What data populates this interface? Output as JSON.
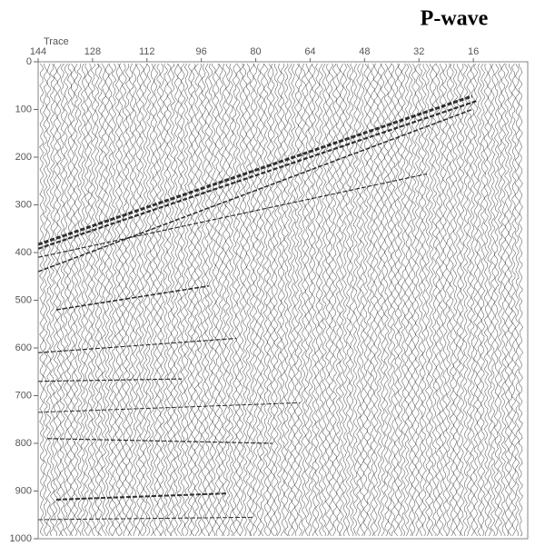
{
  "chart_data": {
    "type": "seismic",
    "title": "P-wave",
    "x_label": "Trace",
    "xlim": [
      144,
      0
    ],
    "xticks": [
      144,
      128,
      112,
      96,
      80,
      64,
      48,
      32,
      16
    ],
    "ylim": [
      0,
      1000
    ],
    "yticks": [
      0,
      100,
      200,
      300,
      400,
      500,
      600,
      700,
      800,
      900,
      1000
    ]
  }
}
